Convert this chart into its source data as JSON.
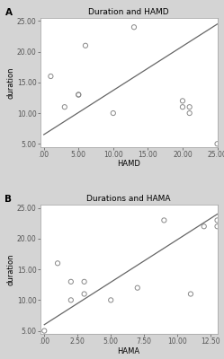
{
  "plot_A": {
    "title": "Duration and HAMD",
    "xlabel": "HAMD",
    "ylabel": "duration",
    "scatter_x": [
      1,
      3,
      5,
      5,
      6,
      10,
      13,
      20,
      20,
      21,
      21,
      25
    ],
    "scatter_y": [
      16,
      11,
      13,
      13,
      21,
      10,
      24,
      12,
      11,
      11,
      10,
      5
    ],
    "line_x": [
      0,
      25
    ],
    "line_y": [
      6.5,
      24.5
    ],
    "xlim": [
      -0.5,
      25
    ],
    "ylim": [
      4.5,
      25.5
    ],
    "xticks": [
      0,
      5,
      10,
      15,
      20,
      25
    ],
    "yticks": [
      5,
      10,
      15,
      20,
      25
    ],
    "xtick_labels": [
      ".00",
      "5.00",
      "10.00",
      "15.00",
      "20.00",
      "25.00"
    ],
    "ytick_labels": [
      "5.00",
      "10.00",
      "15.00",
      "20.00",
      "25.00"
    ],
    "label": "A"
  },
  "plot_B": {
    "title": "Durations and HAMA",
    "xlabel": "HAMA",
    "ylabel": "duration",
    "scatter_x": [
      0,
      1,
      2,
      2,
      3,
      3,
      5,
      7,
      9,
      11,
      12,
      13,
      13
    ],
    "scatter_y": [
      5,
      16,
      10,
      13,
      13,
      11,
      10,
      12,
      23,
      11,
      22,
      23,
      22
    ],
    "line_x": [
      0,
      13
    ],
    "line_y": [
      6.0,
      24.0
    ],
    "xlim": [
      -0.3,
      13
    ],
    "ylim": [
      4.5,
      25.5
    ],
    "xticks": [
      0,
      2.5,
      5.0,
      7.5,
      10.0,
      12.5
    ],
    "yticks": [
      5,
      10,
      15,
      20,
      25
    ],
    "xtick_labels": [
      ".00",
      "2.50",
      "5.00",
      "7.50",
      "10.00",
      "12.50"
    ],
    "ytick_labels": [
      "5.00",
      "10.00",
      "15.00",
      "20.00",
      "25.00"
    ],
    "label": "B"
  },
  "fig_bg_color": "#d4d4d4",
  "plot_bg_color": "#ffffff",
  "scatter_edge_color": "#888888",
  "line_color": "#666666",
  "title_fontsize": 6.5,
  "label_fontsize": 6.0,
  "tick_fontsize": 5.5,
  "marker_size": 14,
  "line_width": 0.9
}
